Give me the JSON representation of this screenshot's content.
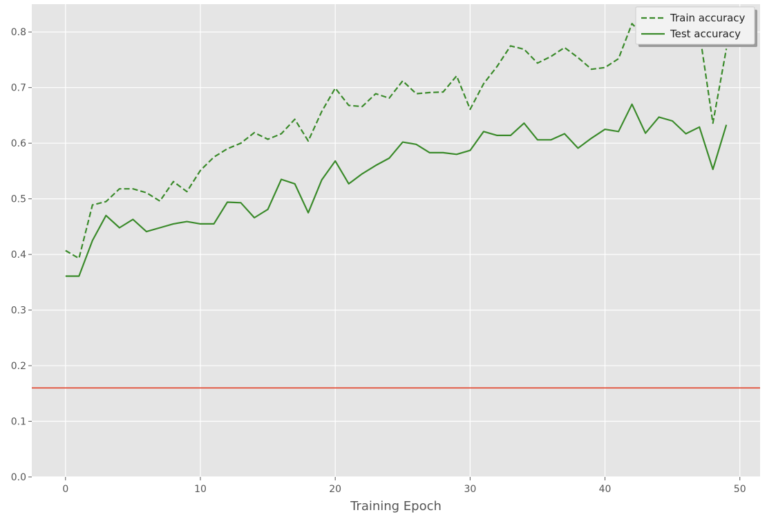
{
  "chart_data": {
    "type": "line",
    "xlabel": "Training Epoch",
    "ylabel": "",
    "xlim": [
      -2.5,
      51.5
    ],
    "ylim": [
      0.0,
      0.85
    ],
    "xticks": [
      0,
      10,
      20,
      30,
      40,
      50
    ],
    "yticks": [
      0.0,
      0.1,
      0.2,
      0.3,
      0.4,
      0.5,
      0.6,
      0.7,
      0.8
    ],
    "grid": true,
    "legend_position": "top-right",
    "x": [
      0,
      1,
      2,
      3,
      4,
      5,
      6,
      7,
      8,
      9,
      10,
      11,
      12,
      13,
      14,
      15,
      16,
      17,
      18,
      19,
      20,
      21,
      22,
      23,
      24,
      25,
      26,
      27,
      28,
      29,
      30,
      31,
      32,
      33,
      34,
      35,
      36,
      37,
      38,
      39,
      40,
      41,
      42,
      43,
      44,
      45,
      46,
      47,
      48,
      49
    ],
    "series": [
      {
        "name": "Train accuracy",
        "style": "dashed",
        "color": "#3a8a2a",
        "values": [
          0.407,
          0.393,
          0.489,
          0.495,
          0.518,
          0.518,
          0.511,
          0.496,
          0.531,
          0.513,
          0.551,
          0.575,
          0.59,
          0.6,
          0.619,
          0.607,
          0.617,
          0.643,
          0.604,
          0.657,
          0.699,
          0.668,
          0.666,
          0.689,
          0.681,
          0.712,
          0.689,
          0.691,
          0.692,
          0.721,
          0.661,
          0.707,
          0.738,
          0.775,
          0.769,
          0.744,
          0.756,
          0.772,
          0.754,
          0.733,
          0.736,
          0.752,
          0.815,
          0.79,
          0.8,
          0.81,
          0.82,
          0.8,
          0.636,
          0.77
        ]
      },
      {
        "name": "Test accuracy",
        "style": "solid",
        "color": "#3a8a2a",
        "values": [
          0.361,
          0.361,
          0.425,
          0.47,
          0.448,
          0.463,
          0.441,
          0.448,
          0.455,
          0.459,
          0.455,
          0.455,
          0.494,
          0.493,
          0.466,
          0.481,
          0.535,
          0.527,
          0.475,
          0.534,
          0.568,
          0.527,
          0.545,
          0.56,
          0.573,
          0.602,
          0.598,
          0.583,
          0.583,
          0.58,
          0.587,
          0.621,
          0.614,
          0.614,
          0.636,
          0.606,
          0.606,
          0.617,
          0.591,
          0.609,
          0.625,
          0.621,
          0.67,
          0.618,
          0.647,
          0.64,
          0.617,
          0.629,
          0.553,
          0.633
        ]
      }
    ],
    "hlines": [
      {
        "y": 0.16,
        "color": "#e24a33"
      }
    ]
  }
}
